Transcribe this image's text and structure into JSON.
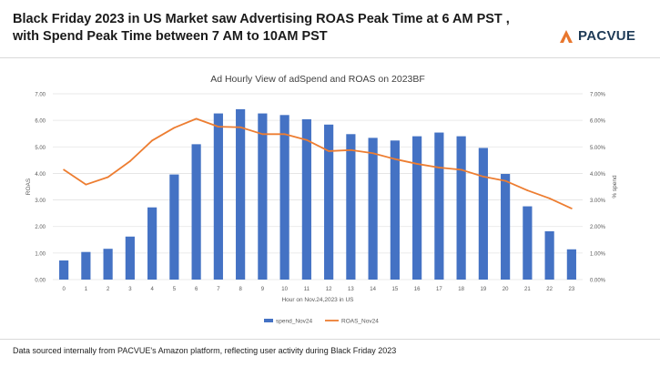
{
  "header": {
    "title_line1": "Black Friday 2023 in US Market saw Advertising ROAS Peak Time at 6 AM PST ,",
    "title_line2": "with Spend Peak Time between 7 AM to 10AM PST"
  },
  "logo": {
    "text": "PACVUE",
    "accent": "#e8762d",
    "text_color": "#1f3b57"
  },
  "footer": {
    "text": "Data sourced internally from PACVUE's Amazon platform, reflecting user activity during Black Friday 2023"
  },
  "chart_data": {
    "type": "bar",
    "title": "Ad Hourly View of adSpend and ROAS on 2023BF",
    "xlabel": "Hour on Nov.24,2023 in US",
    "ylabel": "ROAS",
    "y2label": "% spend",
    "categories": [
      "0",
      "1",
      "2",
      "3",
      "4",
      "5",
      "6",
      "7",
      "8",
      "9",
      "10",
      "11",
      "12",
      "13",
      "14",
      "15",
      "16",
      "17",
      "18",
      "19",
      "20",
      "21",
      "22",
      "23"
    ],
    "ylim": [
      0,
      7
    ],
    "y_ticks": [
      "0.00",
      "1.00",
      "2.00",
      "3.00",
      "4.00",
      "5.00",
      "6.00",
      "7.00"
    ],
    "y2lim": [
      0,
      7
    ],
    "y2_ticks": [
      "0.00%",
      "1.00%",
      "2.00%",
      "3.00%",
      "4.00%",
      "5.00%",
      "6.00%",
      "7.00%"
    ],
    "grid": true,
    "legend_position": "bottom",
    "series": [
      {
        "name": "spend_Nov24",
        "type": "bar",
        "axis": "right",
        "color": "#4472c4",
        "values": [
          0.72,
          1.04,
          1.16,
          1.62,
          2.72,
          3.96,
          5.1,
          6.26,
          6.42,
          6.26,
          6.2,
          6.04,
          5.84,
          5.48,
          5.34,
          5.24,
          5.4,
          5.54,
          5.4,
          4.96,
          3.98,
          2.76,
          1.82,
          1.14
        ]
      },
      {
        "name": "ROAS_Nov24",
        "type": "line",
        "axis": "left",
        "color": "#ed7d31",
        "values": [
          4.14,
          3.58,
          3.86,
          4.46,
          5.24,
          5.72,
          6.06,
          5.76,
          5.74,
          5.48,
          5.48,
          5.26,
          4.84,
          4.88,
          4.76,
          4.54,
          4.36,
          4.22,
          4.14,
          3.88,
          3.72,
          3.36,
          3.06,
          2.68
        ]
      }
    ]
  }
}
